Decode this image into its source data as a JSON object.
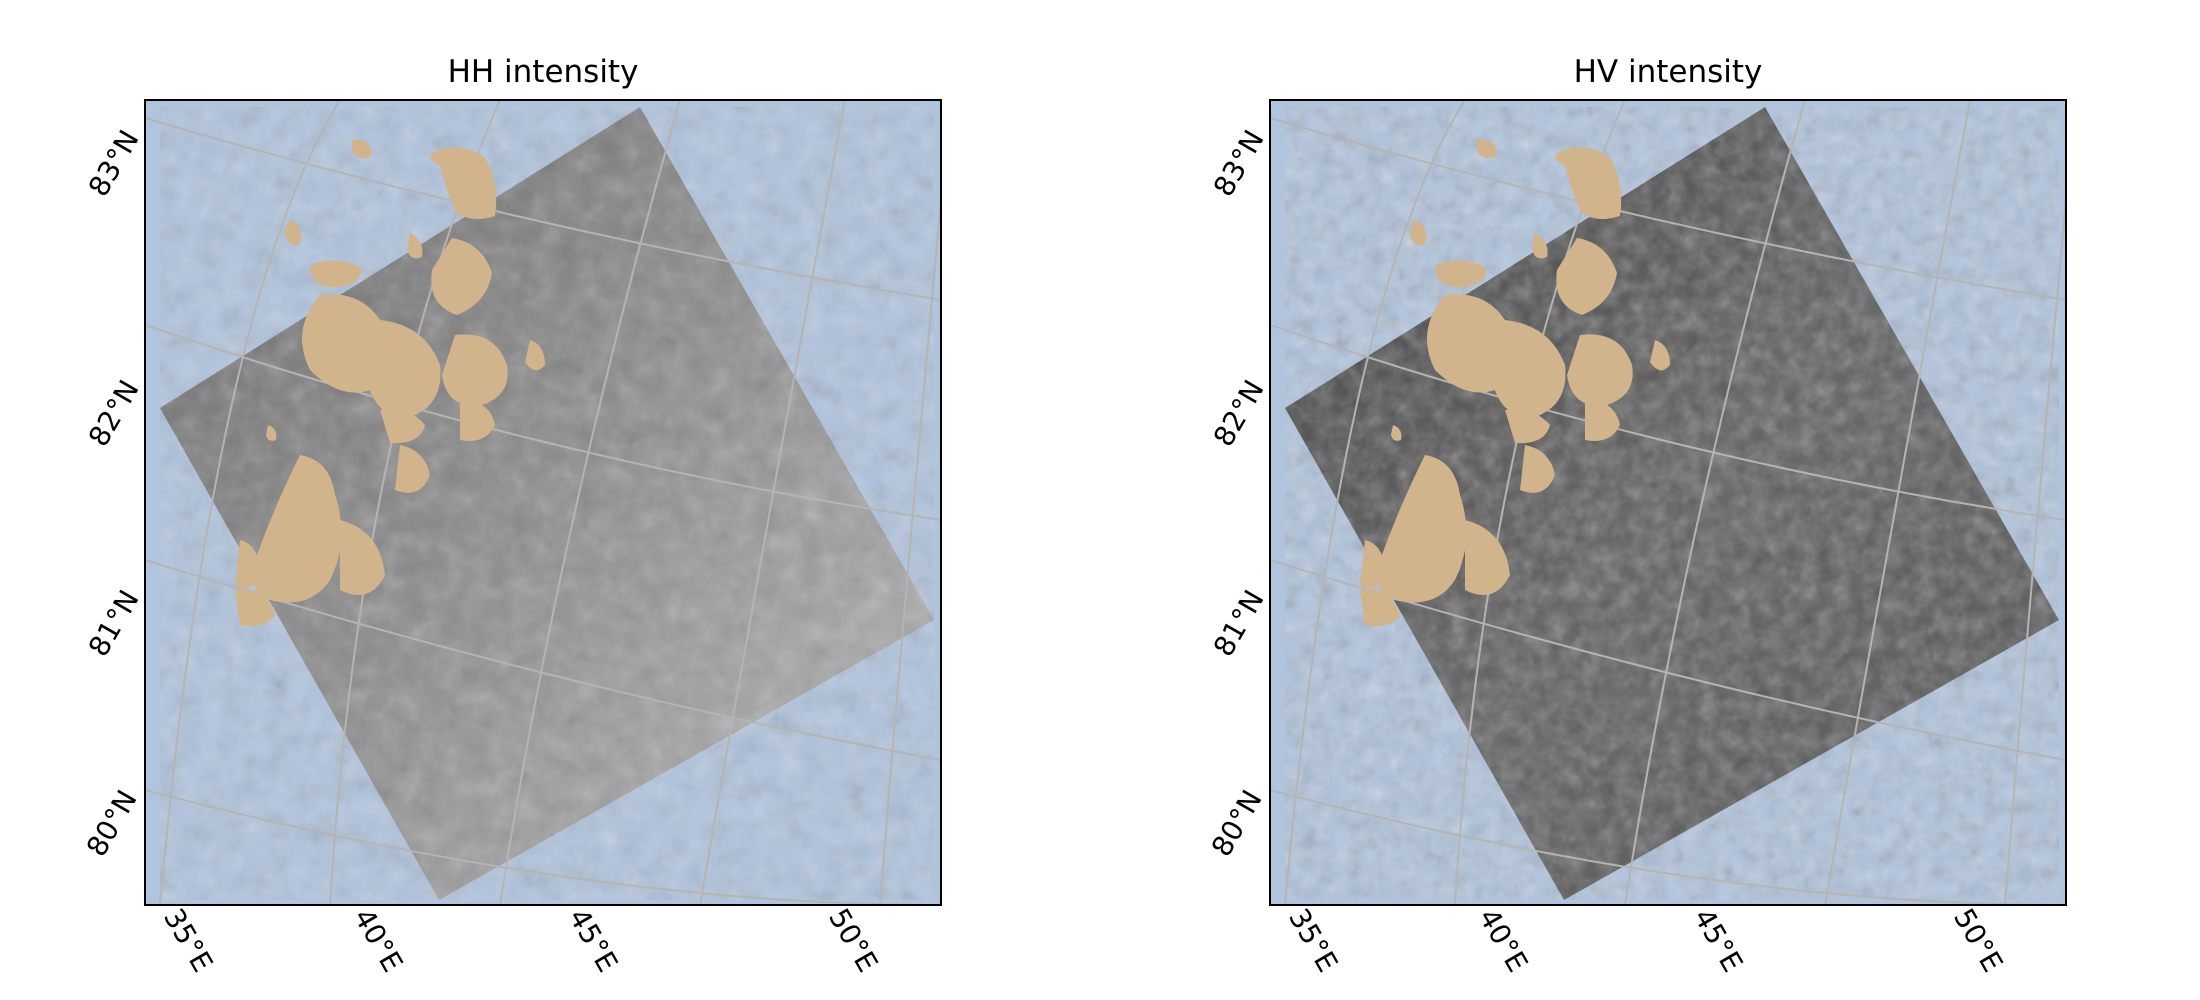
{
  "colors": {
    "ocean": "#b0c4de",
    "land": "#d2b48c",
    "gridline": "#b4b4b4",
    "frame": "#000000",
    "hh_image_base": "#8e8e8e",
    "hv_image_base": "#5a5a5a"
  },
  "panels": [
    {
      "id": "hh",
      "title": "HH intensity",
      "lat_labels": [
        "83°N",
        "82°N",
        "81°N",
        "80°N"
      ],
      "lon_labels": [
        "35°E",
        "40°E",
        "45°E",
        "50°E"
      ],
      "image_tone": "hh_image_base"
    },
    {
      "id": "hv",
      "title": "HV intensity",
      "lat_labels": [
        "83°N",
        "82°N",
        "81°N",
        "80°N"
      ],
      "lon_labels": [
        "35°E",
        "40°E",
        "45°E",
        "50°E"
      ],
      "image_tone": "hv_image_base"
    }
  ]
}
